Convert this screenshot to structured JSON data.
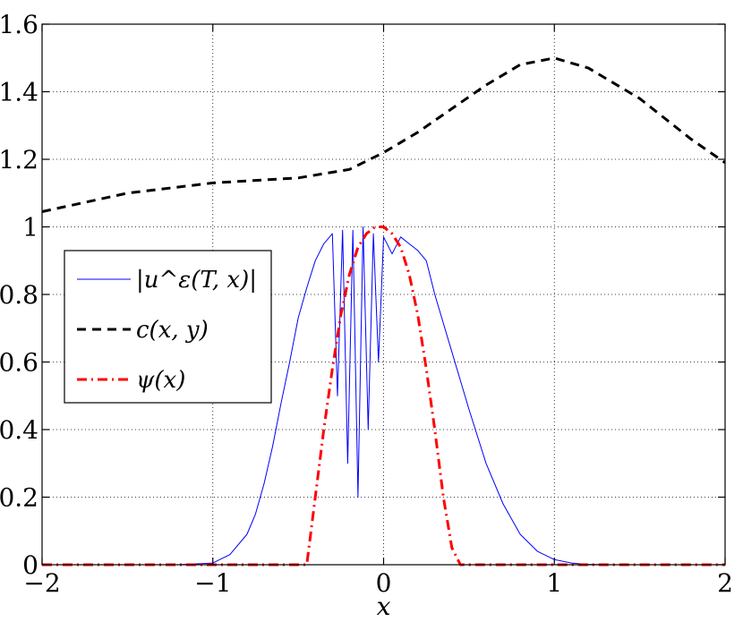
{
  "chart_data": {
    "type": "line",
    "xlabel": "x",
    "ylabel": "",
    "xlim": [
      -2,
      2
    ],
    "ylim": [
      0,
      1.6
    ],
    "grid": true,
    "legend_position": "middle-left",
    "x_ticks": [
      -2,
      -1,
      0,
      1,
      2
    ],
    "x_tick_labels": [
      "−2",
      "−1",
      "0",
      "1",
      "2"
    ],
    "y_ticks": [
      0,
      0.2,
      0.4,
      0.6,
      0.8,
      1,
      1.2,
      1.4,
      1.6
    ],
    "y_tick_labels": [
      "0",
      "0.2",
      "0.4",
      "0.6",
      "0.8",
      "1",
      "1.2",
      "1.4",
      "1.6"
    ],
    "series": [
      {
        "name": "|u^ε(T, x)|",
        "color": "#0000ff",
        "style": "solid",
        "x": [
          -2,
          -1.2,
          -1.0,
          -0.9,
          -0.8,
          -0.75,
          -0.7,
          -0.65,
          -0.6,
          -0.55,
          -0.5,
          -0.45,
          -0.4,
          -0.35,
          -0.3,
          -0.27,
          -0.24,
          -0.21,
          -0.18,
          -0.15,
          -0.12,
          -0.09,
          -0.06,
          -0.03,
          0,
          0.05,
          0.1,
          0.15,
          0.2,
          0.25,
          0.3,
          0.4,
          0.5,
          0.6,
          0.7,
          0.8,
          0.9,
          1.0,
          1.1,
          1.2,
          1.3,
          2.0
        ],
        "y": [
          0,
          0,
          0.005,
          0.03,
          0.09,
          0.15,
          0.24,
          0.35,
          0.48,
          0.6,
          0.73,
          0.82,
          0.9,
          0.95,
          0.98,
          0.5,
          0.99,
          0.3,
          0.99,
          0.2,
          1.0,
          0.4,
          0.98,
          0.6,
          0.97,
          0.92,
          0.97,
          0.95,
          0.93,
          0.9,
          0.8,
          0.63,
          0.46,
          0.3,
          0.18,
          0.09,
          0.04,
          0.015,
          0.005,
          0.001,
          0,
          0
        ]
      },
      {
        "name": "c(x, y)",
        "color": "#000000",
        "style": "dashed",
        "x": [
          -2,
          -1.5,
          -1.0,
          -0.5,
          -0.2,
          0.0,
          0.2,
          0.4,
          0.6,
          0.8,
          1.0,
          1.2,
          1.5,
          1.8,
          2.0
        ],
        "y": [
          1.045,
          1.1,
          1.13,
          1.145,
          1.17,
          1.22,
          1.28,
          1.35,
          1.42,
          1.48,
          1.5,
          1.47,
          1.38,
          1.26,
          1.19
        ]
      },
      {
        "name": "ψ(x)",
        "color": "#ff0000",
        "style": "dashdot",
        "x": [
          -2,
          -0.45,
          -0.4,
          -0.35,
          -0.3,
          -0.25,
          -0.2,
          -0.15,
          -0.1,
          -0.05,
          0,
          0.05,
          0.1,
          0.15,
          0.2,
          0.25,
          0.3,
          0.35,
          0.4,
          0.45,
          2
        ],
        "y": [
          0,
          0,
          0.2,
          0.4,
          0.58,
          0.74,
          0.86,
          0.94,
          0.98,
          1.0,
          1.0,
          0.98,
          0.94,
          0.86,
          0.74,
          0.58,
          0.4,
          0.2,
          0.05,
          0,
          0
        ]
      }
    ]
  }
}
